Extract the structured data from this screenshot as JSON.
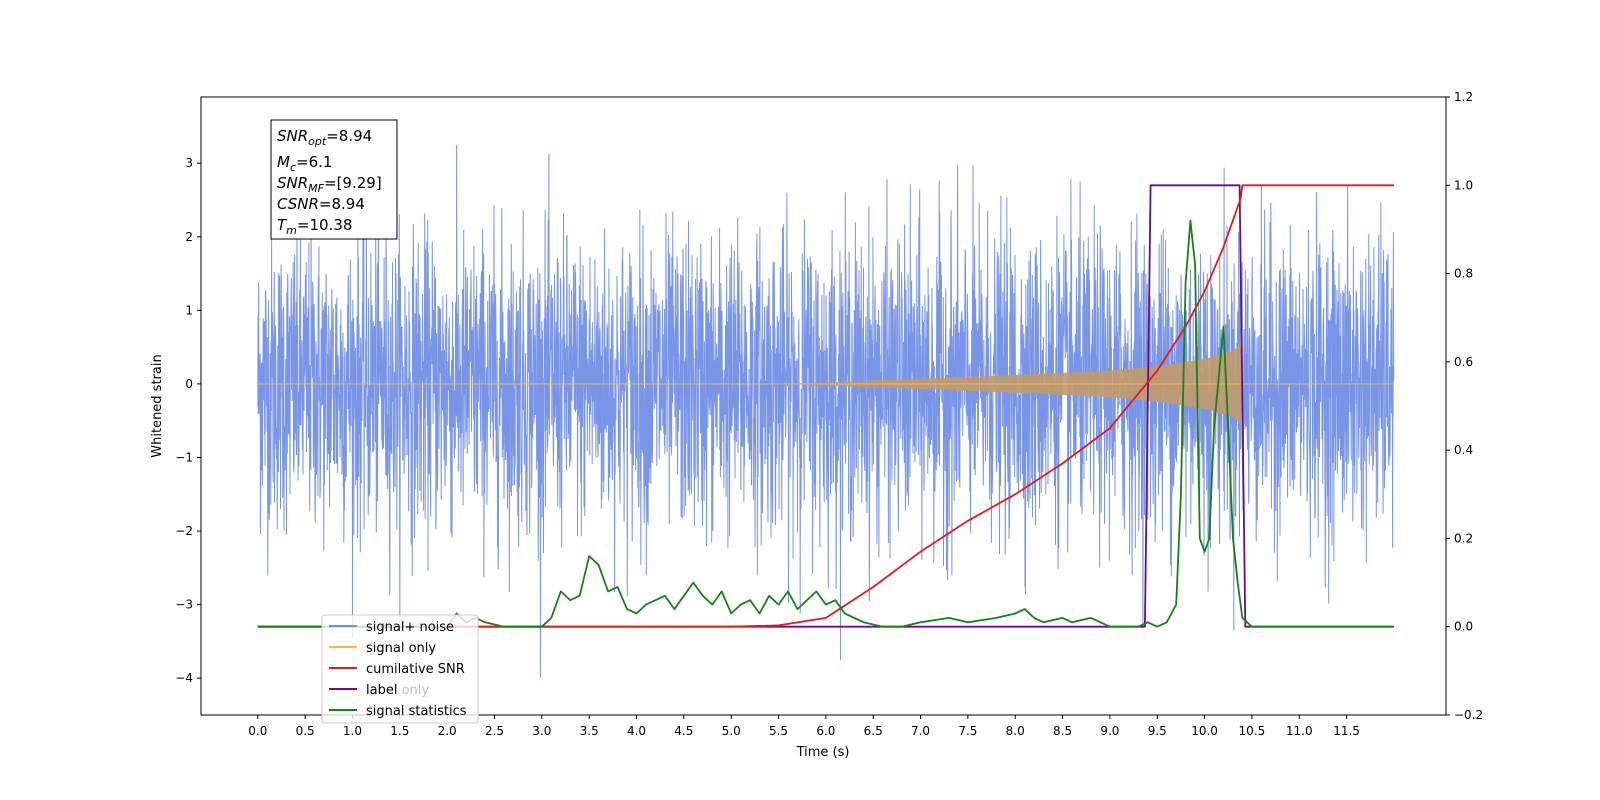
{
  "chart_data": {
    "type": "line",
    "xlabel": "Time (s)",
    "ylabel": "Whitened strain",
    "xlim": [
      -0.6,
      12.55
    ],
    "ylim_left": [
      -4.5,
      3.9
    ],
    "ylim_right": [
      -0.2,
      1.2
    ],
    "x_ticks": [
      "0.0",
      "0.5",
      "1.0",
      "1.5",
      "2.0",
      "2.5",
      "3.0",
      "3.5",
      "4.0",
      "4.5",
      "5.0",
      "5.5",
      "6.0",
      "6.5",
      "7.0",
      "7.5",
      "8.0",
      "8.5",
      "9.0",
      "9.5",
      "10.0",
      "10.5",
      "11.0",
      "11.5"
    ],
    "y_left_ticks": [
      "−4",
      "−3",
      "−2",
      "−1",
      "0",
      "1",
      "2",
      "3"
    ],
    "y_right_ticks": [
      "−0.2",
      "0.0",
      "0.2",
      "0.4",
      "0.6",
      "0.8",
      "1.0",
      "1.2"
    ],
    "annotation": {
      "snr_opt": "=8.94",
      "mc": "=6.1",
      "snr_mf": "=[9.29]",
      "csnr": "=8.94",
      "tm": "=10.38"
    },
    "legend": [
      {
        "label": "signal+ noise",
        "color": "#6c8ce6"
      },
      {
        "label": "signal only",
        "color": "#ffb347"
      },
      {
        "label": "cumilative SNR",
        "color": "#e31a1c"
      },
      {
        "label": "label",
        "color": "#6a0d83"
      },
      {
        "label": "label only",
        "color": "#6a0d83"
      },
      {
        "label": "signal statistics",
        "color": "#1a7f1a"
      }
    ],
    "series": [
      {
        "name": "signal+ noise",
        "axis": "left",
        "color": "#6c8ce6",
        "x_range": [
          0.0,
          12.0
        ],
        "envelope_typical": 1.6,
        "peak_max": 3.5,
        "peak_min": -4.1
      },
      {
        "name": "signal only",
        "axis": "left",
        "color": "#ffb347",
        "envelope_x": [
          0.0,
          5.5,
          6.0,
          7.0,
          8.0,
          9.0,
          9.5,
          10.0,
          10.3,
          10.38,
          10.4,
          12.0
        ],
        "envelope_amp": [
          0.0,
          0.0,
          0.02,
          0.07,
          0.12,
          0.18,
          0.24,
          0.34,
          0.45,
          0.55,
          0.0,
          0.0
        ]
      },
      {
        "name": "cumilative SNR",
        "axis": "right",
        "color": "#e31a1c",
        "x": [
          0.0,
          5.0,
          5.5,
          6.0,
          6.5,
          7.0,
          7.5,
          8.0,
          8.5,
          9.0,
          9.5,
          9.8,
          10.0,
          10.2,
          10.38,
          10.4,
          12.0
        ],
        "y": [
          0.0,
          0.0,
          0.003,
          0.02,
          0.09,
          0.17,
          0.24,
          0.3,
          0.37,
          0.45,
          0.58,
          0.68,
          0.76,
          0.86,
          0.97,
          1.0,
          1.0
        ]
      },
      {
        "name": "label",
        "axis": "right",
        "color": "#6a0d83",
        "x": [
          0.0,
          9.37,
          9.43,
          10.37,
          10.43,
          12.0
        ],
        "y": [
          0.0,
          0.0,
          1.0,
          1.0,
          0.0,
          0.0
        ]
      },
      {
        "name": "signal statistics",
        "axis": "right",
        "color": "#1a7f1a",
        "x": [
          0.0,
          2.0,
          2.1,
          2.2,
          2.3,
          2.4,
          2.6,
          3.0,
          3.1,
          3.2,
          3.3,
          3.4,
          3.5,
          3.6,
          3.7,
          3.8,
          3.9,
          4.0,
          4.1,
          4.3,
          4.4,
          4.5,
          4.6,
          4.7,
          4.8,
          4.9,
          5.0,
          5.1,
          5.2,
          5.3,
          5.4,
          5.5,
          5.6,
          5.7,
          5.8,
          5.9,
          6.0,
          6.1,
          6.2,
          6.4,
          6.6,
          6.8,
          7.0,
          7.3,
          7.5,
          7.8,
          8.0,
          8.1,
          8.2,
          8.3,
          8.5,
          8.6,
          8.8,
          9.0,
          9.2,
          9.3,
          9.4,
          9.5,
          9.6,
          9.7,
          9.75,
          9.8,
          9.85,
          9.9,
          9.95,
          10.0,
          10.05,
          10.1,
          10.2,
          10.25,
          10.3,
          10.35,
          10.4,
          10.5,
          11.0,
          12.0
        ],
        "y": [
          0.0,
          0.0,
          0.03,
          0.01,
          0.02,
          0.01,
          0.0,
          0.0,
          0.02,
          0.08,
          0.06,
          0.07,
          0.16,
          0.14,
          0.08,
          0.09,
          0.04,
          0.03,
          0.05,
          0.07,
          0.04,
          0.07,
          0.1,
          0.07,
          0.05,
          0.08,
          0.03,
          0.05,
          0.06,
          0.03,
          0.07,
          0.05,
          0.08,
          0.04,
          0.06,
          0.08,
          0.05,
          0.06,
          0.03,
          0.01,
          0.0,
          0.0,
          0.01,
          0.02,
          0.01,
          0.02,
          0.03,
          0.04,
          0.02,
          0.01,
          0.02,
          0.01,
          0.02,
          0.0,
          0.0,
          0.0,
          0.01,
          0.0,
          0.01,
          0.05,
          0.3,
          0.78,
          0.92,
          0.82,
          0.2,
          0.17,
          0.2,
          0.45,
          0.68,
          0.45,
          0.2,
          0.1,
          0.02,
          0.0,
          0.0,
          0.0
        ]
      }
    ]
  }
}
